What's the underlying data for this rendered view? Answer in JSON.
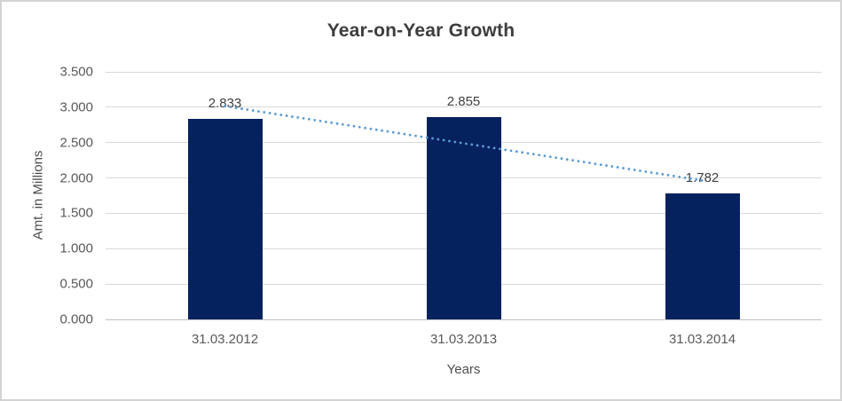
{
  "chart_data": {
    "type": "bar",
    "title": "Year-on-Year Growth",
    "xlabel": "Years",
    "ylabel": "Amt. in Millions",
    "categories": [
      "31.03.2012",
      "31.03.2013",
      "31.03.2014"
    ],
    "values": [
      2.833,
      2.855,
      1.782
    ],
    "data_labels": [
      "2.833",
      "2.855",
      "1.782"
    ],
    "ylim": [
      0,
      3.5
    ],
    "ytick_step": 0.5,
    "ytick_labels": [
      "0.000",
      "0.500",
      "1.000",
      "1.500",
      "2.000",
      "2.500",
      "3.000",
      "3.500"
    ],
    "grid": true,
    "legend": "none",
    "trendline": {
      "type": "linear",
      "style": "dotted",
      "series": "values"
    },
    "colors": {
      "bar": "#05215e",
      "trendline": "#5b9bd5",
      "gridline": "#d9d9d9",
      "axis_line": "#bfbfbf",
      "title_text": "#3d3d3d",
      "tick_text": "#595959",
      "data_label_text": "#404040"
    }
  }
}
